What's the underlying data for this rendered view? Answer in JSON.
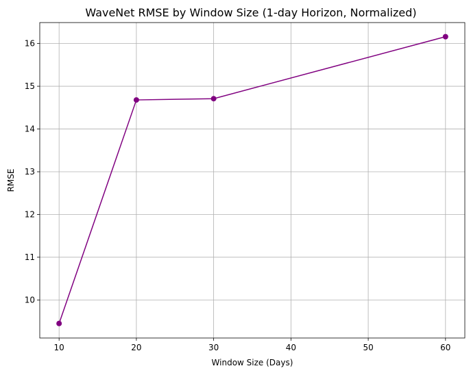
{
  "chart_data": {
    "type": "line",
    "title": "WaveNet RMSE by Window Size (1-day Horizon, Normalized)",
    "xlabel": "Window Size (Days)",
    "ylabel": "RMSE",
    "x": [
      10,
      20,
      30,
      60
    ],
    "series": [
      {
        "values": [
          9.45,
          14.68,
          14.71,
          16.16
        ],
        "color": "#800080",
        "marker": "circle"
      }
    ],
    "xlim": [
      7.5,
      62.5
    ],
    "ylim": [
      9.11,
      16.49
    ],
    "xticks": [
      10,
      20,
      30,
      40,
      50,
      60
    ],
    "yticks": [
      10,
      11,
      12,
      13,
      14,
      15,
      16
    ],
    "grid": true
  }
}
